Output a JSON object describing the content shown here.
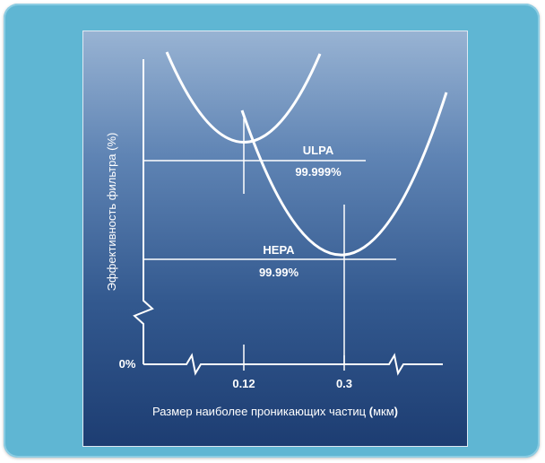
{
  "diagram": {
    "y_axis_label": "Эффективность фильтра (%)",
    "x_axis_label_prefix": "Размер наиболее проникающих частиц ",
    "x_axis_label_open": "(",
    "x_axis_label_unit": "мкм",
    "x_axis_label_close": ")",
    "zero_label": "0%",
    "ticks": [
      "0.12",
      "0.3"
    ],
    "curves": [
      {
        "name": "ULPA",
        "value": "99.999%"
      },
      {
        "name": "HEPA",
        "value": "99.99%"
      }
    ]
  },
  "colors": {
    "frame": "#5fb6d3",
    "panel_top": "#98b3d3",
    "panel_bottom": "#1d3d72",
    "lines": "#ffffff"
  }
}
